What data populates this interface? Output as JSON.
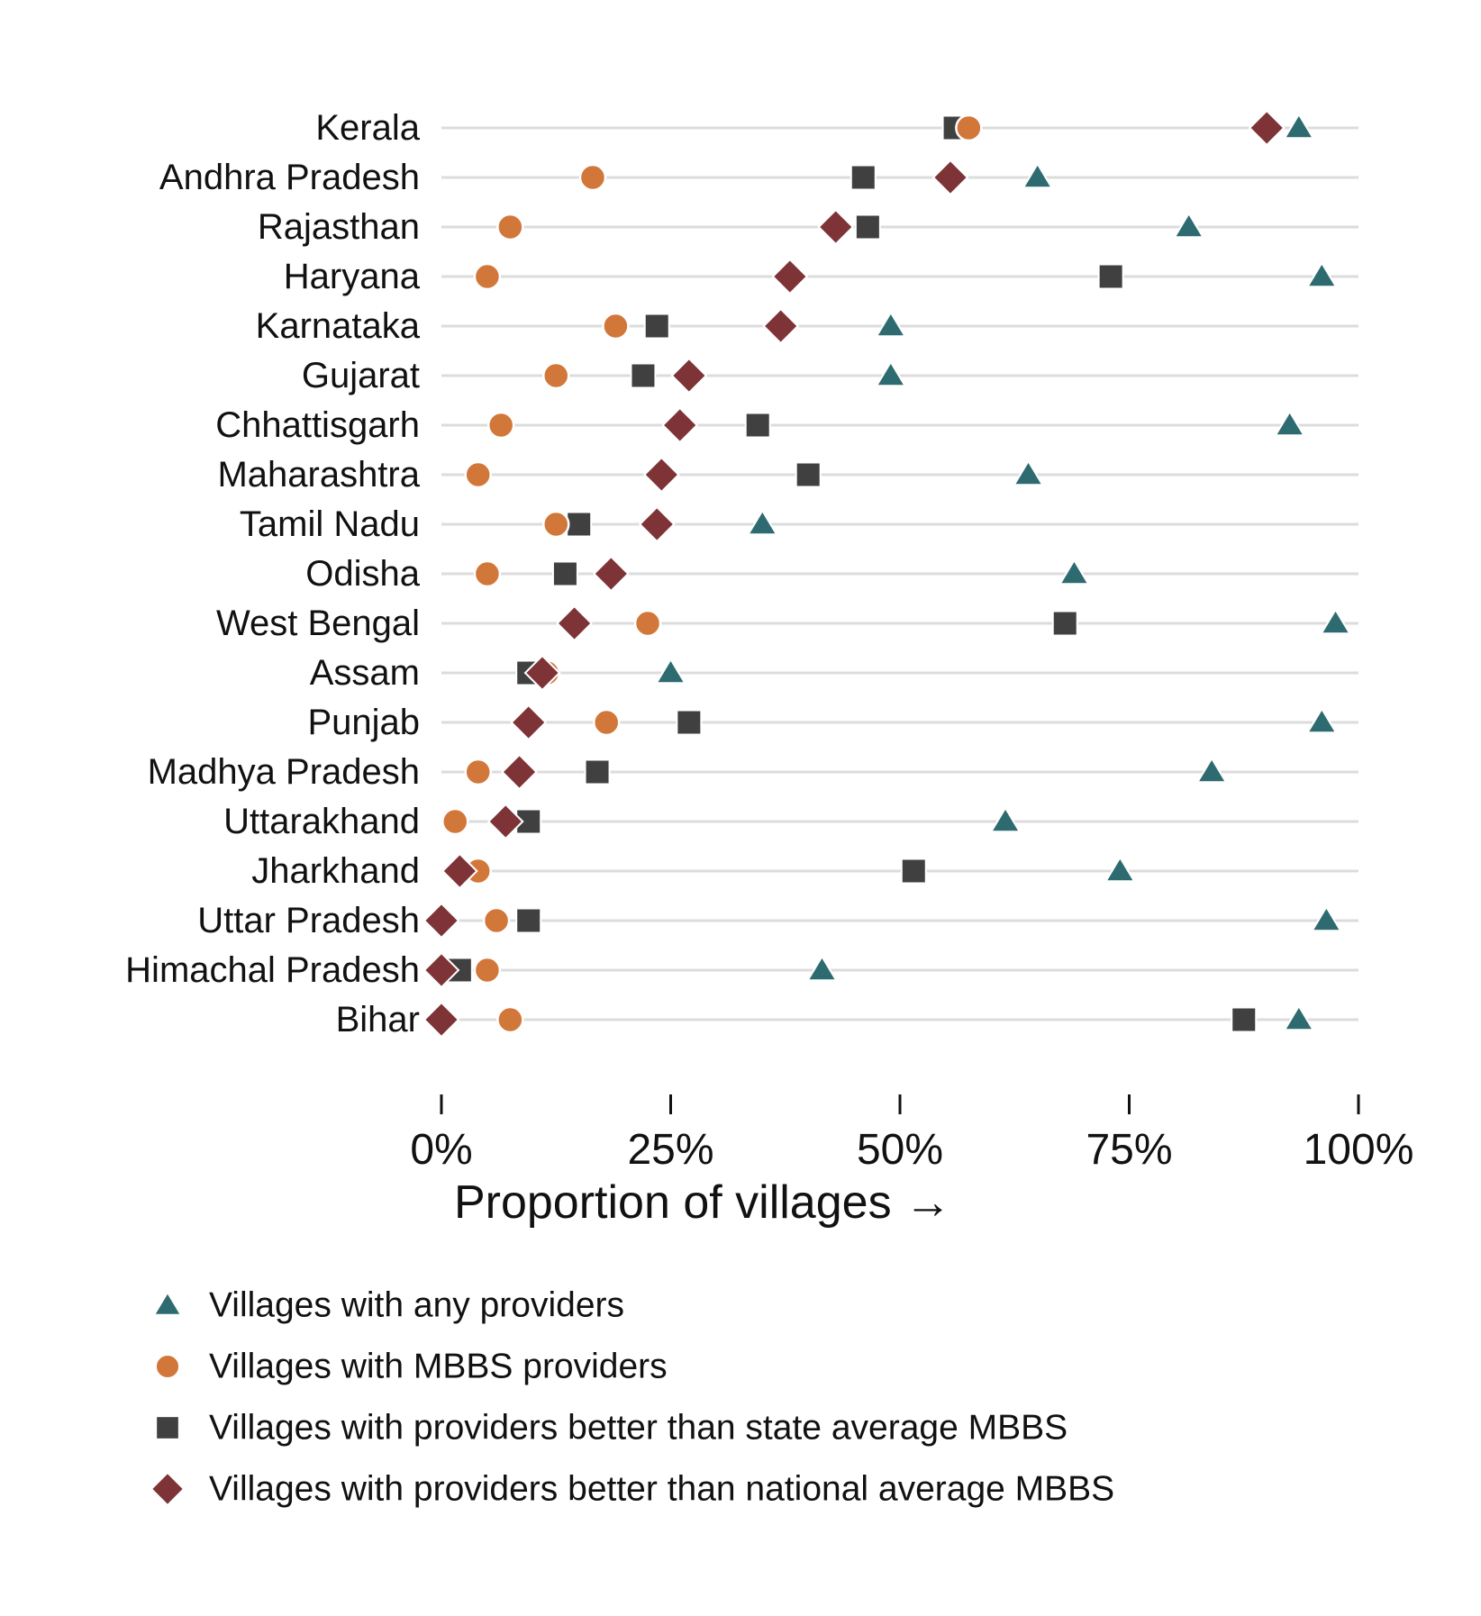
{
  "chart_data": {
    "type": "scatter",
    "xlabel": "Proportion of villages →",
    "xlim": [
      0,
      100
    ],
    "x_ticks": [
      0,
      25,
      50,
      75,
      100
    ],
    "x_tick_labels": [
      "0%",
      "25%",
      "50%",
      "75%",
      "100%"
    ],
    "grid": "horizontal",
    "legend_position": "bottom-left",
    "categories": [
      "Kerala",
      "Andhra Pradesh",
      "Rajasthan",
      "Haryana",
      "Karnataka",
      "Gujarat",
      "Chhattisgarh",
      "Maharashtra",
      "Tamil Nadu",
      "Odisha",
      "West Bengal",
      "Assam",
      "Punjab",
      "Madhya Pradesh",
      "Uttarakhand",
      "Jharkhand",
      "Uttar Pradesh",
      "Himachal Pradesh",
      "Bihar"
    ],
    "series": [
      {
        "name": "Villages with any providers",
        "marker": "triangle",
        "color": "#2e6b70",
        "values": [
          93.5,
          65,
          81.5,
          96,
          49,
          49,
          92.5,
          64,
          35,
          69,
          97.5,
          25,
          96,
          84,
          61.5,
          74,
          96.5,
          41.5,
          93.5
        ]
      },
      {
        "name": "Villages with MBBS providers",
        "marker": "circle",
        "color": "#d2773a",
        "values": [
          57.5,
          16.5,
          7.5,
          5,
          19,
          12.5,
          6.5,
          4,
          12.5,
          5,
          22.5,
          11.5,
          18,
          4,
          1.5,
          4,
          6,
          5,
          7.5
        ]
      },
      {
        "name": "Villages with providers better than state average MBBS",
        "marker": "square",
        "color": "#404040",
        "values": [
          56,
          46,
          46.5,
          73,
          23.5,
          22,
          34.5,
          40,
          15,
          13.5,
          68,
          9.5,
          27,
          17,
          9.5,
          51.5,
          9.5,
          2,
          87.5
        ]
      },
      {
        "name": "Villages with providers better than national average MBBS",
        "marker": "diamond",
        "color": "#7e3437",
        "values": [
          90,
          55.5,
          43,
          38,
          37,
          27,
          26,
          24,
          23.5,
          18.5,
          14.5,
          11,
          9.5,
          8.5,
          7,
          2,
          0,
          0,
          0
        ]
      }
    ]
  }
}
